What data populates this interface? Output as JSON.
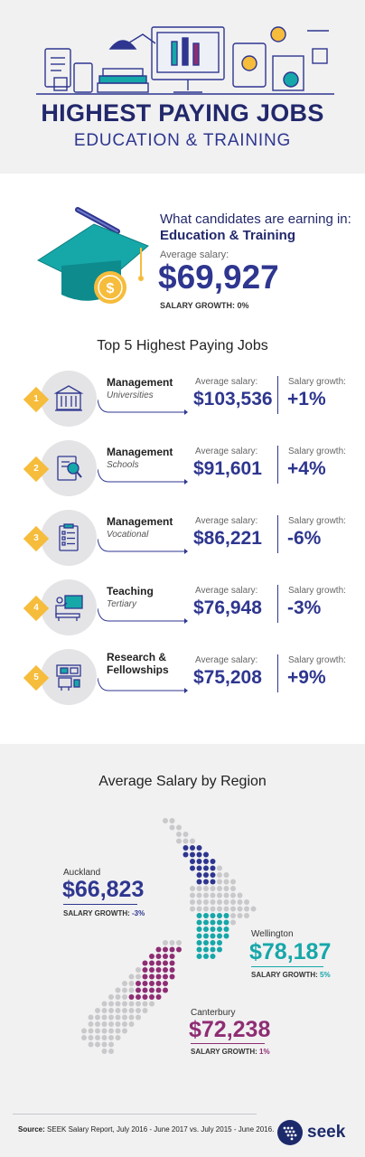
{
  "header": {
    "title": "HIGHEST PAYING JOBS",
    "subtitle": "EDUCATION & TRAINING"
  },
  "overview": {
    "intro": "What candidates are earning in:",
    "industry": "Education & Training",
    "avg_label": "Average salary:",
    "avg_value": "$69,927",
    "growth_label": "SALARY GROWTH:",
    "growth_value": "0%"
  },
  "top5": {
    "title": "Top 5 Highest Paying Jobs",
    "jobs": [
      {
        "rank": "1",
        "title": "Management",
        "subtitle": "Universities",
        "salary_label": "Average salary:",
        "salary": "$103,536",
        "growth_label": "Salary growth:",
        "growth": "+1%",
        "icon": "university-icon"
      },
      {
        "rank": "2",
        "title": "Management",
        "subtitle": "Schools",
        "salary_label": "Average salary:",
        "salary": "$91,601",
        "growth_label": "Salary growth:",
        "growth": "+4%",
        "icon": "book-magnifier-icon"
      },
      {
        "rank": "3",
        "title": "Management",
        "subtitle": "Vocational",
        "salary_label": "Average salary:",
        "salary": "$86,221",
        "growth_label": "Salary growth:",
        "growth": "-6%",
        "icon": "clipboard-checklist-icon"
      },
      {
        "rank": "4",
        "title": "Teaching",
        "subtitle": "Tertiary",
        "salary_label": "Average salary:",
        "salary": "$76,948",
        "growth_label": "Salary growth:",
        "growth": "-3%",
        "icon": "teacher-board-icon"
      },
      {
        "rank": "5",
        "title_line1": "Research &",
        "title_line2": "Fellowships",
        "salary_label": "Average salary:",
        "salary": "$75,208",
        "growth_label": "Salary growth:",
        "growth": "+9%",
        "icon": "research-station-icon"
      }
    ]
  },
  "regions": {
    "title": "Average Salary by Region",
    "items": [
      {
        "name": "Auckland",
        "value": "$66,823",
        "growth_label": "SALARY GROWTH:",
        "growth": "-3%",
        "color": "#2e368f"
      },
      {
        "name": "Wellington",
        "value": "$78,187",
        "growth_label": "SALARY GROWTH:",
        "growth": "5%",
        "color": "#16a7a9"
      },
      {
        "name": "Canterbury",
        "value": "$72,238",
        "growth_label": "SALARY GROWTH:",
        "growth": "1%",
        "color": "#8e2d73"
      }
    ]
  },
  "footer": {
    "source_label": "Source:",
    "source_text": "SEEK Salary Report, July 2016 - June 2017 vs. July 2015 - June 2016.",
    "brand": "seek"
  },
  "colors": {
    "navy": "#2e368f",
    "dark_navy": "#22286b",
    "teal": "#16a7a9",
    "plum": "#8e2d73",
    "gold": "#f6bc3b",
    "panel_grey": "#f1f1f2"
  }
}
